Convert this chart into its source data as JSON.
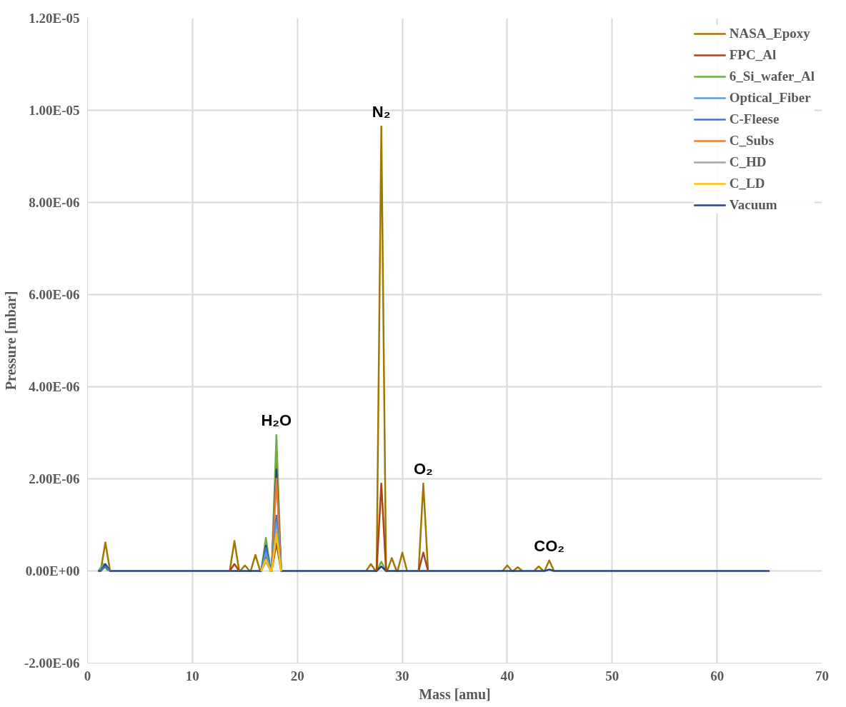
{
  "chart_data": {
    "type": "line",
    "xlabel": "Mass [amu]",
    "ylabel": "Pressure [mbar]",
    "xlim": [
      0,
      70
    ],
    "xticks": [
      0,
      10,
      20,
      30,
      40,
      50,
      60,
      70
    ],
    "ylim": [
      -2e-06,
      1.2e-05
    ],
    "yticks": [
      {
        "value": -2e-06,
        "label": "-2.00E-06"
      },
      {
        "value": 0,
        "label": "0.00E+00"
      },
      {
        "value": 2e-06,
        "label": "2.00E-06"
      },
      {
        "value": 4e-06,
        "label": "4.00E-06"
      },
      {
        "value": 6e-06,
        "label": "6.00E-06"
      },
      {
        "value": 8e-06,
        "label": "8.00E-06"
      },
      {
        "value": 1e-05,
        "label": "1.00E-05"
      },
      {
        "value": 1.2e-05,
        "label": "1.20E-05"
      }
    ],
    "grid": true,
    "legend": "top right",
    "marker": "none",
    "line_style": "solid",
    "annotations": [
      {
        "text": "H₂O",
        "x": 18,
        "y": 2.95e-06
      },
      {
        "text": "N₂",
        "x": 28,
        "y": 9.65e-06
      },
      {
        "text": "O₂",
        "x": 32,
        "y": 1.9e-06
      },
      {
        "text": "CO₂",
        "x": 44,
        "y": 2.3e-07
      }
    ],
    "series": [
      {
        "name": "NASA_Epoxy",
        "color": "#a07800",
        "x": [
          1.25,
          1.7,
          2.15,
          7,
          13.55,
          14,
          14.45,
          14.55,
          15,
          15.45,
          15.55,
          16,
          16.45,
          16.55,
          17,
          17.45,
          17.55,
          18,
          18.45,
          22,
          26.55,
          27,
          27.45,
          27.55,
          28,
          28.45,
          28.55,
          29,
          29.45,
          29.55,
          30,
          30.45,
          31,
          31.55,
          32,
          32.45,
          36,
          39.55,
          40,
          40.45,
          40.55,
          41,
          41.45,
          42,
          42.55,
          43,
          43.45,
          43.55,
          44,
          44.45
        ],
        "values": [
          0,
          6.2e-07,
          0,
          null,
          0,
          6.5e-07,
          0,
          0,
          1.2e-07,
          0,
          0,
          3.5e-07,
          0,
          0,
          5e-07,
          0,
          0,
          2.4e-06,
          0,
          null,
          0,
          1.5e-07,
          0,
          0,
          9.65e-06,
          0,
          0,
          2.8e-07,
          0,
          0,
          4e-07,
          0,
          null,
          0,
          1.9e-06,
          0,
          null,
          0,
          1.2e-07,
          0,
          0,
          8e-08,
          0,
          null,
          0,
          1e-07,
          0,
          0,
          2.3e-07,
          0
        ]
      },
      {
        "name": "FPC_Al",
        "color": "#a5461e",
        "x": [
          13.55,
          14,
          14.45,
          15.5,
          16.55,
          17,
          17.45,
          17.55,
          18,
          18.45,
          23,
          27.55,
          28,
          28.45,
          30,
          31.55,
          32,
          32.45
        ],
        "values": [
          0,
          1.5e-07,
          0,
          null,
          0,
          3e-07,
          0,
          0,
          6e-07,
          0,
          null,
          0,
          1.9e-06,
          0,
          null,
          0,
          4e-07,
          0
        ]
      },
      {
        "name": "6_Si_wafer_Al",
        "color": "#70ad47",
        "x": [
          1.05,
          1.5,
          1.95,
          9,
          16.55,
          17,
          17.45,
          17.55,
          18,
          18.45,
          23,
          27.55,
          28,
          28.45
        ],
        "values": [
          0,
          1.5e-07,
          0,
          null,
          0,
          7.2e-07,
          0,
          0,
          2.95e-06,
          0,
          null,
          0,
          2e-07,
          0
        ]
      },
      {
        "name": "Optical_Fiber",
        "color": "#5b9bd5",
        "x": [
          16.55,
          17,
          17.45,
          17.55,
          18,
          18.45
        ],
        "values": [
          0,
          4e-07,
          0,
          0,
          1.05e-06,
          0
        ]
      },
      {
        "name": "C-Fleese",
        "color": "#4472c4",
        "x": [
          1.25,
          1.7,
          2.15,
          9,
          16.55,
          17,
          17.45,
          17.55,
          18,
          18.45
        ],
        "values": [
          0,
          1e-07,
          0,
          null,
          0,
          5e-07,
          0,
          0,
          1.2e-06,
          0
        ]
      },
      {
        "name": "C_Subs",
        "color": "#ed7d31",
        "x": [
          16.55,
          17,
          17.45,
          17.55,
          18,
          18.45
        ],
        "values": [
          0,
          3e-07,
          0,
          0,
          2e-06,
          0
        ]
      },
      {
        "name": "C_HD",
        "color": "#a5a5a5",
        "x": [
          16.55,
          17,
          17.45,
          17.55,
          18,
          18.45
        ],
        "values": [
          0,
          2e-07,
          0,
          0,
          9e-07,
          0
        ]
      },
      {
        "name": "C_LD",
        "color": "#ffc000",
        "x": [
          16.55,
          17,
          17.45,
          17.55,
          18,
          18.45
        ],
        "values": [
          0,
          2.5e-07,
          0,
          0,
          8e-07,
          0
        ]
      },
      {
        "name": "Vacuum",
        "color": "#264478",
        "x": [
          1,
          1.25,
          1.7,
          2.15,
          16.55,
          17,
          17.45,
          17.55,
          18,
          18.45,
          27.55,
          28,
          28.45,
          43.55,
          44,
          44.45,
          65
        ],
        "values": [
          0,
          0,
          1.5e-07,
          0,
          0,
          5.5e-07,
          0,
          0,
          2.2e-06,
          0,
          0,
          1e-07,
          0,
          0,
          3e-08,
          0,
          0
        ]
      }
    ]
  }
}
